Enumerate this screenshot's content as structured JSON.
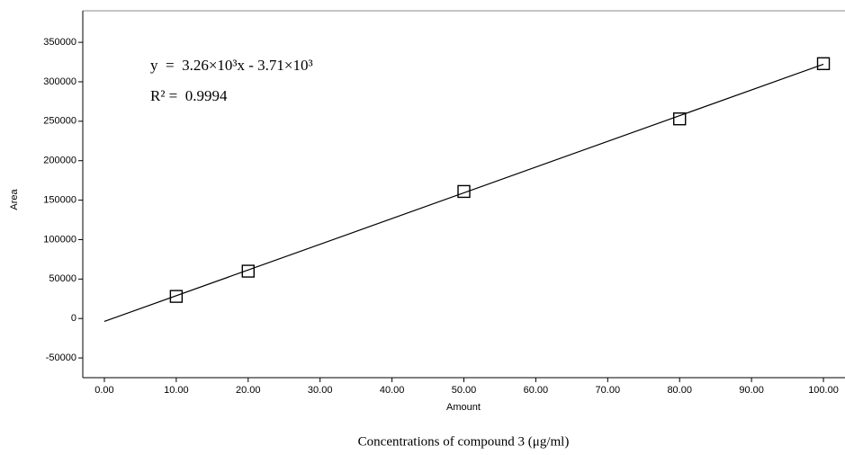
{
  "chart_data": {
    "type": "scatter",
    "title": "Concentrations of compound 3 (μg/ml)",
    "x_label": "Amount",
    "y_label": "Area",
    "x": [
      10,
      20,
      50,
      80,
      100
    ],
    "values": [
      28000,
      60000,
      161000,
      253000,
      323000
    ],
    "color": "#000000",
    "trendline": {
      "slope": 3260,
      "intercept": -3710,
      "x": [
        0,
        100
      ]
    },
    "annotations": [
      "y  =  3.26×10³x - 3.71×10³",
      "R² =  0.9994"
    ],
    "xlim": [
      -3,
      103
    ],
    "ylim": [
      -75000,
      390000
    ],
    "xticks": [
      {
        "value": 0,
        "label": "0.00"
      },
      {
        "value": 10,
        "label": "10.00"
      },
      {
        "value": 20,
        "label": "20.00"
      },
      {
        "value": 30,
        "label": "30.00"
      },
      {
        "value": 40,
        "label": "40.00"
      },
      {
        "value": 50,
        "label": "50.00"
      },
      {
        "value": 60,
        "label": "60.00"
      },
      {
        "value": 70,
        "label": "70.00"
      },
      {
        "value": 80,
        "label": "80.00"
      },
      {
        "value": 90,
        "label": "90.00"
      },
      {
        "value": 100,
        "label": "100.00"
      }
    ],
    "yticks": [
      -50000,
      0,
      50000,
      100000,
      150000,
      200000,
      250000,
      300000,
      350000
    ]
  }
}
